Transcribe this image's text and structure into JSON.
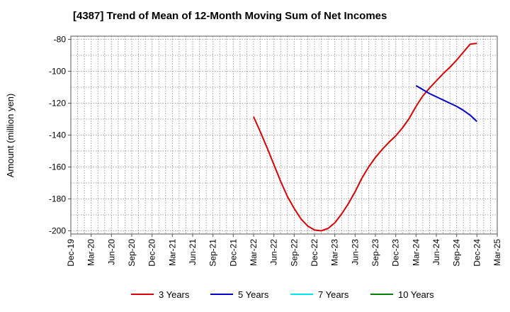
{
  "chart_data": {
    "type": "line",
    "title": "[4387]  Trend of Mean of 12-Month Moving Sum of Net Incomes",
    "xlabel": "",
    "ylabel": "Amount (million yen)",
    "ylim": [
      -202,
      -78
    ],
    "yticks": [
      -80,
      -100,
      -120,
      -140,
      -160,
      -180,
      -200
    ],
    "x_tick_labels": [
      "Dec-19",
      "Mar-20",
      "Jun-20",
      "Sep-20",
      "Dec-20",
      "Mar-21",
      "Jun-21",
      "Sep-21",
      "Dec-21",
      "Mar-22",
      "Jun-22",
      "Sep-22",
      "Dec-22",
      "Mar-23",
      "Jun-23",
      "Sep-23",
      "Dec-23",
      "Mar-24",
      "Jun-24",
      "Sep-24",
      "Dec-24",
      "Mar-25"
    ],
    "grid": true,
    "legend_position": "bottom",
    "series": [
      {
        "name": "3 Years",
        "color": "#dd0000",
        "points": [
          [
            "Mar-22",
            -128.5
          ],
          [
            "Apr-22",
            -138
          ],
          [
            "May-22",
            -148
          ],
          [
            "Jun-22",
            -158.5
          ],
          [
            "Jul-22",
            -169
          ],
          [
            "Aug-22",
            -178.5
          ],
          [
            "Sep-22",
            -186
          ],
          [
            "Oct-22",
            -192.5
          ],
          [
            "Nov-22",
            -197
          ],
          [
            "Dec-22",
            -199.5
          ],
          [
            "Jan-23",
            -200
          ],
          [
            "Feb-23",
            -198.5
          ],
          [
            "Mar-23",
            -195
          ],
          [
            "Apr-23",
            -189.5
          ],
          [
            "May-23",
            -183
          ],
          [
            "Jun-23",
            -175.5
          ],
          [
            "Jul-23",
            -167
          ],
          [
            "Aug-23",
            -160
          ],
          [
            "Sep-23",
            -154
          ],
          [
            "Oct-23",
            -149
          ],
          [
            "Nov-23",
            -144.5
          ],
          [
            "Dec-23",
            -140.5
          ],
          [
            "Jan-24",
            -135.5
          ],
          [
            "Feb-24",
            -129.5
          ],
          [
            "Mar-24",
            -122
          ],
          [
            "Apr-24",
            -115.5
          ],
          [
            "May-24",
            -110.5
          ],
          [
            "Jun-24",
            -106
          ],
          [
            "Jul-24",
            -101.5
          ],
          [
            "Aug-24",
            -97.5
          ],
          [
            "Sep-24",
            -93
          ],
          [
            "Oct-24",
            -88
          ],
          [
            "Nov-24",
            -83
          ],
          [
            "Dec-24",
            -82.5
          ]
        ]
      },
      {
        "name": "5 Years",
        "color": "#0000cc",
        "points": [
          [
            "Mar-24",
            -109
          ],
          [
            "Apr-24",
            -111.5
          ],
          [
            "May-24",
            -114
          ],
          [
            "Jun-24",
            -116
          ],
          [
            "Jul-24",
            -118
          ],
          [
            "Aug-24",
            -120
          ],
          [
            "Sep-24",
            -122
          ],
          [
            "Oct-24",
            -124.5
          ],
          [
            "Nov-24",
            -127.5
          ],
          [
            "Dec-24",
            -131.5
          ]
        ]
      },
      {
        "name": "7 Years",
        "color": "#00e5ee",
        "points": []
      },
      {
        "name": "10 Years",
        "color": "#008000",
        "points": []
      }
    ]
  }
}
